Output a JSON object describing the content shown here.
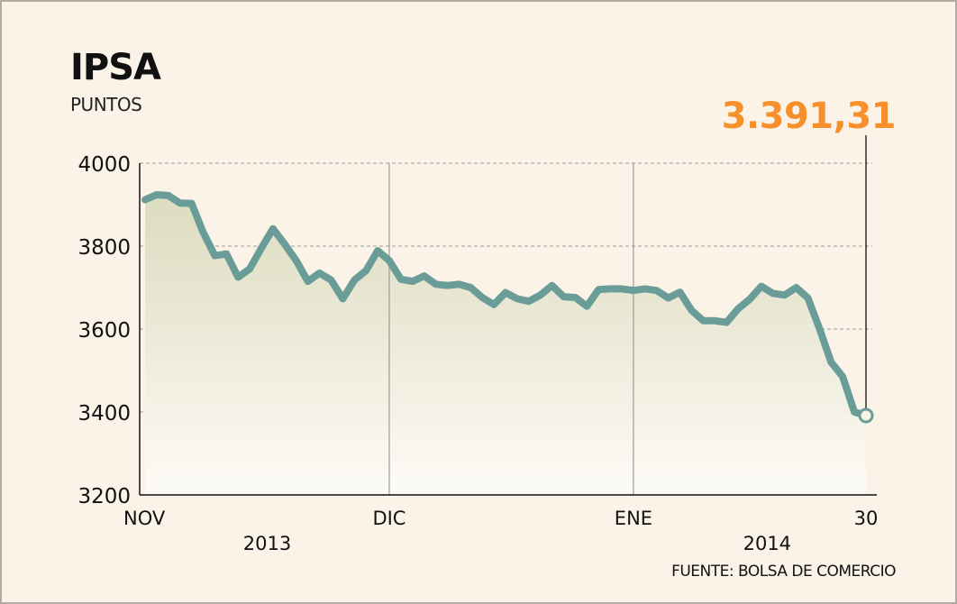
{
  "header": {
    "title": "IPSA",
    "subtitle": "PUNTOS",
    "last_value": "3.391,31"
  },
  "footer": {
    "source": "FUENTE: BOLSA DE COMERCIO"
  },
  "colors": {
    "line": "#6a9c98",
    "highlight": "#f7902a",
    "background": "#fbf3e7",
    "grid": "#9a9a9a"
  },
  "chart_data": {
    "type": "area",
    "title": "IPSA",
    "ylabel": "PUNTOS",
    "ylim": [
      3200,
      4000
    ],
    "yticks": [
      4000,
      3800,
      3600,
      3400,
      3200
    ],
    "x_ticks": [
      {
        "label": "NOV",
        "index": 0
      },
      {
        "label": "DIC",
        "index": 21
      },
      {
        "label": "ENE",
        "index": 42
      },
      {
        "label": "30",
        "index": 63
      }
    ],
    "year_labels": [
      {
        "label": "2013",
        "index": 10.5
      },
      {
        "label": "2014",
        "index": 53.5
      }
    ],
    "vertical_gridlines_at": [
      21,
      42
    ],
    "grid": true,
    "series": [
      {
        "values": [
          3912,
          3924,
          3922,
          3904,
          3903,
          3833,
          3777,
          3781,
          3725,
          3745,
          3795,
          3842,
          3805,
          3765,
          3715,
          3735,
          3718,
          3673,
          3718,
          3741,
          3789,
          3765,
          3720,
          3715,
          3728,
          3708,
          3705,
          3708,
          3700,
          3676,
          3659,
          3688,
          3673,
          3667,
          3682,
          3705,
          3678,
          3676,
          3655,
          3695,
          3697,
          3697,
          3693,
          3697,
          3693,
          3675,
          3689,
          3645,
          3620,
          3620,
          3616,
          3649,
          3672,
          3703,
          3686,
          3682,
          3700,
          3675,
          3601,
          3520,
          3485,
          3400,
          3391.31
        ]
      }
    ]
  }
}
